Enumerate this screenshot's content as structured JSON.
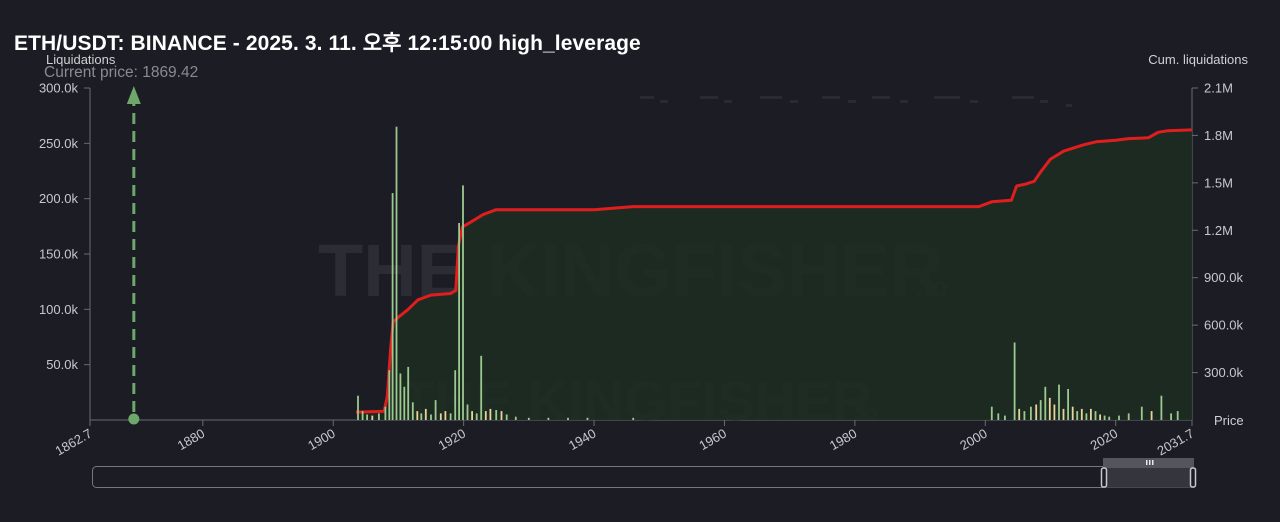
{
  "title": "ETH/USDT: BINANCE - 2025. 3. 11. 오후 12:15:00 high_leverage",
  "current_price_label": "Current price: 1869.42",
  "watermark": {
    "brand": "THE KINGFISHER",
    "suffix": ".io"
  },
  "colors": {
    "background": "#1c1c24",
    "cum_line": "#e01e1e",
    "cum_fill": "#1e2c22",
    "bar_green": "#9bc98f",
    "bar_yellow": "#e8d49a",
    "current_price": "#6da86a"
  },
  "chart_data": {
    "type": "bar",
    "current_price": 1869.42,
    "x_range": [
      1862.7,
      2031.7
    ],
    "x_ticks": [
      "1862.7",
      "1880",
      "1900",
      "1920",
      "1940",
      "1960",
      "1980",
      "2000",
      "2020",
      "2031.7"
    ],
    "xlabel": "Price",
    "left_axis": {
      "label": "Liquidations",
      "range": [
        0,
        300000
      ],
      "ticks": [
        "50.0k",
        "100.0k",
        "150.0k",
        "200.0k",
        "250.0k",
        "300.0k"
      ]
    },
    "right_axis": {
      "label": "Cum. liquidations",
      "range": [
        0,
        2100000
      ],
      "ticks": [
        "300.0k",
        "600.0k",
        "900.0k",
        "1.2M",
        "1.5M",
        "1.8M",
        "2.1M"
      ]
    },
    "cumulative": [
      [
        1903.5,
        50000
      ],
      [
        1907.8,
        55000
      ],
      [
        1908.3,
        150000
      ],
      [
        1908.8,
        450000
      ],
      [
        1909.2,
        620000
      ],
      [
        1910,
        650000
      ],
      [
        1911.5,
        700000
      ],
      [
        1913,
        760000
      ],
      [
        1915,
        790000
      ],
      [
        1918,
        800000
      ],
      [
        1918.8,
        820000
      ],
      [
        1919.2,
        1100000
      ],
      [
        1919.8,
        1220000
      ],
      [
        1921,
        1250000
      ],
      [
        1923,
        1300000
      ],
      [
        1925,
        1330000
      ],
      [
        1930,
        1330000
      ],
      [
        1940,
        1330000
      ],
      [
        1946,
        1350000
      ],
      [
        1960,
        1350000
      ],
      [
        1980,
        1350000
      ],
      [
        1999,
        1350000
      ],
      [
        2001,
        1380000
      ],
      [
        2004,
        1390000
      ],
      [
        2004.8,
        1480000
      ],
      [
        2006,
        1490000
      ],
      [
        2007.5,
        1510000
      ],
      [
        2008.5,
        1570000
      ],
      [
        2010,
        1650000
      ],
      [
        2012,
        1700000
      ],
      [
        2015,
        1740000
      ],
      [
        2017,
        1760000
      ],
      [
        2020,
        1770000
      ],
      [
        2022,
        1780000
      ],
      [
        2025,
        1785000
      ],
      [
        2026.5,
        1820000
      ],
      [
        2028,
        1830000
      ],
      [
        2031.7,
        1835000
      ]
    ],
    "liquidation_bars": [
      [
        1903.8,
        22000,
        "green"
      ],
      [
        1904.5,
        8000,
        "green"
      ],
      [
        1905.2,
        5000,
        "green"
      ],
      [
        1906,
        4000,
        "yellow"
      ],
      [
        1907,
        6000,
        "green"
      ],
      [
        1908,
        12000,
        "green"
      ],
      [
        1908.6,
        45000,
        "green"
      ],
      [
        1909.1,
        205000,
        "green"
      ],
      [
        1909.7,
        265000,
        "green"
      ],
      [
        1910.3,
        42000,
        "green"
      ],
      [
        1910.9,
        30000,
        "green"
      ],
      [
        1911.5,
        48000,
        "green"
      ],
      [
        1912.2,
        16000,
        "green"
      ],
      [
        1912.9,
        8000,
        "yellow"
      ],
      [
        1913.5,
        6000,
        "green"
      ],
      [
        1914.2,
        10000,
        "yellow"
      ],
      [
        1915,
        5000,
        "green"
      ],
      [
        1915.7,
        18000,
        "green"
      ],
      [
        1916.5,
        6000,
        "yellow"
      ],
      [
        1917.2,
        8000,
        "yellow"
      ],
      [
        1918,
        6000,
        "green"
      ],
      [
        1918.7,
        45000,
        "green"
      ],
      [
        1919.3,
        178000,
        "green"
      ],
      [
        1919.9,
        212000,
        "green"
      ],
      [
        1920.6,
        14000,
        "green"
      ],
      [
        1921.3,
        8000,
        "yellow"
      ],
      [
        1922,
        6000,
        "green"
      ],
      [
        1922.7,
        58000,
        "green"
      ],
      [
        1923.4,
        8000,
        "yellow"
      ],
      [
        1924.1,
        10000,
        "yellow"
      ],
      [
        1925,
        9000,
        "green"
      ],
      [
        1925.8,
        8000,
        "yellow"
      ],
      [
        1926.6,
        5000,
        "green"
      ],
      [
        1928,
        3000,
        "green"
      ],
      [
        1930,
        2000,
        "green"
      ],
      [
        1933,
        2000,
        "green"
      ],
      [
        1936,
        2000,
        "green"
      ],
      [
        1939,
        2000,
        "green"
      ],
      [
        1946,
        2000,
        "green"
      ],
      [
        2001,
        12000,
        "green"
      ],
      [
        2002,
        6000,
        "green"
      ],
      [
        2003,
        4000,
        "green"
      ],
      [
        2004.5,
        70000,
        "green"
      ],
      [
        2005.2,
        10000,
        "yellow"
      ],
      [
        2006,
        8000,
        "green"
      ],
      [
        2007,
        12000,
        "green"
      ],
      [
        2007.8,
        14000,
        "yellow"
      ],
      [
        2008.5,
        18000,
        "green"
      ],
      [
        2009.2,
        30000,
        "green"
      ],
      [
        2009.9,
        20000,
        "yellow"
      ],
      [
        2010.6,
        14000,
        "yellow"
      ],
      [
        2011.3,
        32000,
        "green"
      ],
      [
        2012,
        10000,
        "yellow"
      ],
      [
        2012.7,
        28000,
        "green"
      ],
      [
        2013.4,
        12000,
        "yellow"
      ],
      [
        2014.1,
        8000,
        "green"
      ],
      [
        2014.8,
        10000,
        "yellow"
      ],
      [
        2015.5,
        6000,
        "green"
      ],
      [
        2016.2,
        10000,
        "yellow"
      ],
      [
        2016.9,
        8000,
        "green"
      ],
      [
        2017.6,
        5000,
        "yellow"
      ],
      [
        2018.3,
        4000,
        "green"
      ],
      [
        2019,
        3000,
        "green"
      ],
      [
        2020.5,
        4000,
        "green"
      ],
      [
        2022,
        6000,
        "green"
      ],
      [
        2024,
        12000,
        "green"
      ],
      [
        2025.5,
        8000,
        "yellow"
      ],
      [
        2027,
        22000,
        "green"
      ],
      [
        2028.5,
        6000,
        "green"
      ],
      [
        2029.5,
        8000,
        "green"
      ]
    ]
  }
}
